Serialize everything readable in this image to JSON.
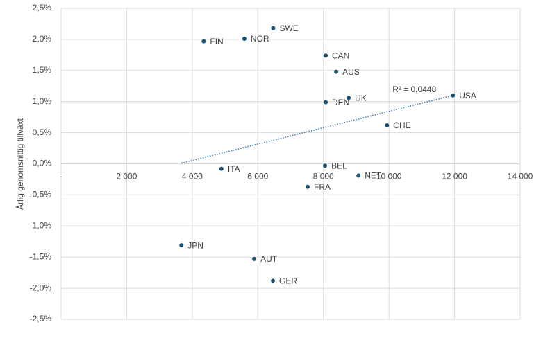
{
  "chart_data": {
    "type": "scatter",
    "y_label": "Årlig genomsnittig tillväxt",
    "labels": [
      "FIN",
      "NOR",
      "SWE",
      "CAN",
      "AUS",
      "UK",
      "DEN",
      "USA",
      "CHE",
      "BEL",
      "ITA",
      "NET",
      "FRA",
      "JPN",
      "AUT",
      "GER"
    ],
    "x": [
      4350,
      5590,
      6470,
      8070,
      8390,
      8770,
      8070,
      11950,
      9940,
      8050,
      4890,
      9070,
      7520,
      3670,
      5890,
      6460
    ],
    "values": [
      1.97,
      2.01,
      2.18,
      1.74,
      1.48,
      1.06,
      0.99,
      1.1,
      0.62,
      -0.03,
      -0.08,
      -0.19,
      -0.37,
      -1.31,
      -1.53,
      -1.88
    ],
    "color": "#1b4f72",
    "trendline": {
      "x": [
        3670,
        11950
      ],
      "y": [
        0.01,
        1.1
      ],
      "color": "#2e75b6",
      "annotation": "R² = 0,0448"
    },
    "xlim": [
      0,
      14000
    ],
    "xticks": [
      {
        "value": 0,
        "label": "-"
      },
      {
        "value": 2000,
        "label": "2 000"
      },
      {
        "value": 4000,
        "label": "4 000"
      },
      {
        "value": 6000,
        "label": "6 000"
      },
      {
        "value": 8000,
        "label": "8 000"
      },
      {
        "value": 10000,
        "label": "10 000"
      },
      {
        "value": 12000,
        "label": "12 000"
      },
      {
        "value": 14000,
        "label": "14 000"
      }
    ],
    "ylim": [
      -2.5,
      2.5
    ],
    "yticks": [
      {
        "value": 2.5,
        "label": "2,5%"
      },
      {
        "value": 2.0,
        "label": "2,0%"
      },
      {
        "value": 1.5,
        "label": "1,5%"
      },
      {
        "value": 1.0,
        "label": "1,0%"
      },
      {
        "value": 0.5,
        "label": "0,5%"
      },
      {
        "value": 0,
        "label": "0,0%"
      },
      {
        "value": -0.5,
        "label": "-0,5%"
      },
      {
        "value": -1.0,
        "label": "-1,0%"
      },
      {
        "value": -1.5,
        "label": "-1,5%"
      },
      {
        "value": -2.0,
        "label": "-2,0%"
      },
      {
        "value": -2.5,
        "label": "-2,5%"
      }
    ],
    "grid": true
  }
}
